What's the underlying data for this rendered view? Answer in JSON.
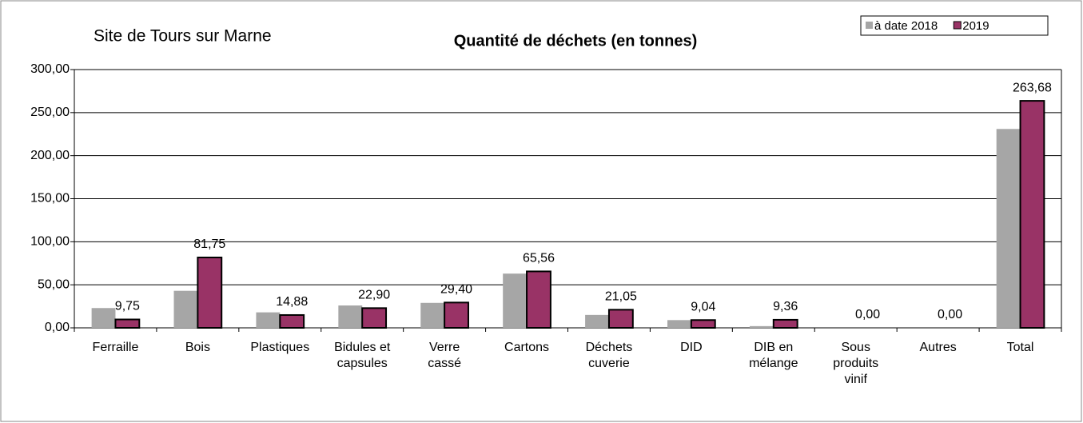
{
  "chart_data": {
    "type": "bar",
    "title": "Quantité de déchets (en tonnes)",
    "subtitle": "Site de Tours sur Marne",
    "categories": [
      "Ferraille",
      "Bois",
      "Plastiques",
      "Bidules et\ncapsules",
      "Verre\ncassé",
      "Cartons",
      "Déchets\ncuverie",
      "DID",
      "DIB en\nmélange",
      "Sous\nproduits\nvinif",
      "Autres",
      "Total"
    ],
    "series": [
      {
        "name": "à date 2018",
        "color": "#a6a6a6",
        "values": [
          23,
          43,
          18,
          26,
          29,
          63,
          15,
          9,
          2,
          0,
          0,
          231
        ]
      },
      {
        "name": "2019",
        "color": "#993366",
        "values": [
          9.75,
          81.75,
          14.88,
          22.9,
          29.4,
          65.56,
          21.05,
          9.04,
          9.36,
          0,
          0,
          263.68
        ],
        "value_labels": [
          "9,75",
          "81,75",
          "14,88",
          "22,90",
          "29,40",
          "65,56",
          "21,05",
          "9,04",
          "9,36",
          "0,00",
          "0,00",
          "263,68"
        ]
      }
    ],
    "ylim": [
      0,
      300
    ],
    "yticks": [
      {
        "value": 0,
        "label": "0,00"
      },
      {
        "value": 50,
        "label": "50,00"
      },
      {
        "value": 100,
        "label": "100,00"
      },
      {
        "value": 150,
        "label": "150,00"
      },
      {
        "value": 200,
        "label": "200,00"
      },
      {
        "value": 250,
        "label": "250,00"
      },
      {
        "value": 300,
        "label": "300,00"
      }
    ],
    "grid": true,
    "legend": "top-right"
  }
}
